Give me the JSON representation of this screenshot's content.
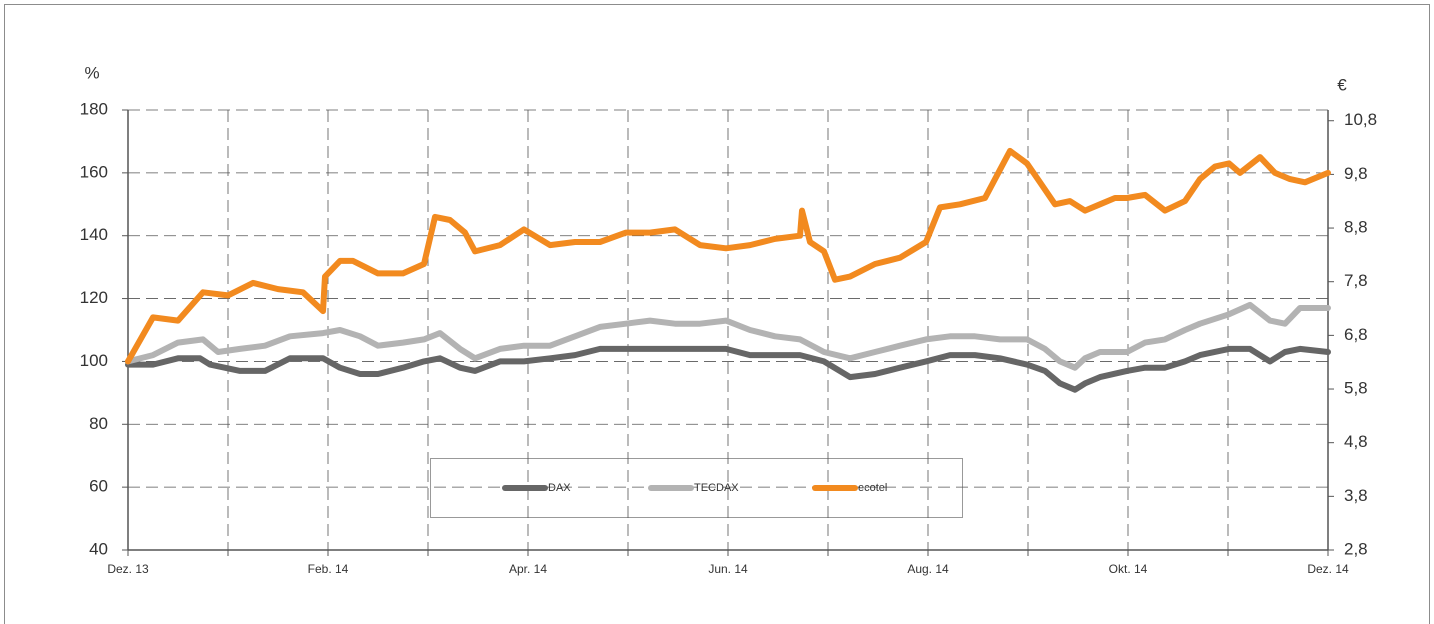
{
  "chart_data": {
    "type": "line",
    "y_label": "%",
    "y2_label": "€",
    "xlim": [
      0,
      12
    ],
    "xticks": [
      {
        "value": 0,
        "label": "Dez. 13"
      },
      {
        "value": 2,
        "label": "Feb. 14"
      },
      {
        "value": 4,
        "label": "Apr. 14"
      },
      {
        "value": 6,
        "label": "Jun. 14"
      },
      {
        "value": 8,
        "label": "Aug. 14"
      },
      {
        "value": 10,
        "label": "Okt. 14"
      },
      {
        "value": 12,
        "label": "Dez. 14"
      }
    ],
    "xgrid_minor": [
      1,
      3,
      5,
      7,
      9,
      11
    ],
    "ylim": [
      40,
      180
    ],
    "yticks": [
      40,
      60,
      80,
      100,
      120,
      140,
      160,
      180
    ],
    "y2lim": [
      2.8,
      11.0
    ],
    "y2ticks": [
      {
        "value": 2.8,
        "label": "2,8"
      },
      {
        "value": 3.8,
        "label": "3,8"
      },
      {
        "value": 4.8,
        "label": "4,8"
      },
      {
        "value": 5.8,
        "label": "5,8"
      },
      {
        "value": 6.8,
        "label": "6,8"
      },
      {
        "value": 7.8,
        "label": "7,8"
      },
      {
        "value": 8.8,
        "label": "8,8"
      },
      {
        "value": 9.8,
        "label": "9,8"
      },
      {
        "value": 10.8,
        "label": "10,8"
      }
    ],
    "grid": true,
    "legend": "lower center",
    "series": [
      {
        "name": "DAX",
        "color": "#666666",
        "x": [
          0,
          0.25,
          0.5,
          0.72,
          0.82,
          1.12,
          1.37,
          1.62,
          1.95,
          2.12,
          2.32,
          2.5,
          2.75,
          2.96,
          3.12,
          3.32,
          3.47,
          3.72,
          3.96,
          4.22,
          4.47,
          4.72,
          4.98,
          5.22,
          5.47,
          5.72,
          5.98,
          6.22,
          6.47,
          6.72,
          6.96,
          7.22,
          7.47,
          7.72,
          7.98,
          8.22,
          8.47,
          8.72,
          8.99,
          9.17,
          9.32,
          9.47,
          9.57,
          9.72,
          9.99,
          10.17,
          10.37,
          10.57,
          10.72,
          11.01,
          11.22,
          11.42,
          11.57,
          11.72,
          12
        ],
        "values": [
          99,
          99,
          101,
          101,
          99,
          97,
          97,
          101,
          101,
          98,
          96,
          96,
          98,
          100,
          101,
          98,
          97,
          100,
          100,
          101,
          102,
          104,
          104,
          104,
          104,
          104,
          104,
          102,
          102,
          102,
          100,
          95,
          96,
          98,
          100,
          102,
          102,
          101,
          99,
          97,
          93,
          91,
          93,
          95,
          97,
          98,
          98,
          100,
          102,
          104,
          104,
          100,
          103,
          104,
          103
        ]
      },
      {
        "name": "TECDAX",
        "color": "#b3b3b3",
        "x": [
          0,
          0.25,
          0.5,
          0.75,
          0.9,
          1.12,
          1.37,
          1.62,
          1.95,
          2.12,
          2.32,
          2.5,
          2.75,
          2.96,
          3.12,
          3.32,
          3.47,
          3.72,
          3.96,
          4.22,
          4.47,
          4.72,
          4.98,
          5.22,
          5.47,
          5.72,
          5.98,
          6.22,
          6.47,
          6.72,
          6.96,
          7.22,
          7.47,
          7.72,
          7.98,
          8.22,
          8.47,
          8.72,
          8.99,
          9.17,
          9.32,
          9.47,
          9.57,
          9.72,
          9.99,
          10.17,
          10.37,
          10.57,
          10.72,
          11.01,
          11.22,
          11.42,
          11.57,
          11.72,
          12
        ],
        "values": [
          100,
          102,
          106,
          107,
          103,
          104,
          105,
          108,
          109,
          110,
          108,
          105,
          106,
          107,
          109,
          104,
          101,
          104,
          105,
          105,
          108,
          111,
          112,
          113,
          112,
          112,
          113,
          110,
          108,
          107,
          103,
          101,
          103,
          105,
          107,
          108,
          108,
          107,
          107,
          104,
          100,
          98,
          101,
          103,
          103,
          106,
          107,
          110,
          112,
          115,
          118,
          113,
          112,
          117,
          117
        ]
      },
      {
        "name": "ecotel",
        "color": "#f28a1f",
        "x": [
          0,
          0.25,
          0.5,
          0.75,
          1,
          1.25,
          1.5,
          1.75,
          1.95,
          1.97,
          2.12,
          2.25,
          2.5,
          2.75,
          2.96,
          3.07,
          3.22,
          3.37,
          3.47,
          3.72,
          3.96,
          4.22,
          4.47,
          4.72,
          4.98,
          5.22,
          5.47,
          5.72,
          5.98,
          6.22,
          6.47,
          6.72,
          6.74,
          6.82,
          6.96,
          7.07,
          7.22,
          7.47,
          7.72,
          7.98,
          8.12,
          8.32,
          8.57,
          8.72,
          8.82,
          8.99,
          9.12,
          9.27,
          9.42,
          9.57,
          9.72,
          9.87,
          9.99,
          10.17,
          10.37,
          10.57,
          10.72,
          10.87,
          11.01,
          11.12,
          11.32,
          11.47,
          11.62,
          11.77,
          12
        ],
        "values": [
          100,
          114,
          113,
          122,
          121,
          125,
          123,
          122,
          116,
          127,
          132,
          132,
          128,
          128,
          131,
          146,
          145,
          141,
          135,
          137,
          142,
          137,
          138,
          138,
          141,
          141,
          142,
          137,
          136,
          137,
          139,
          140,
          148,
          138,
          135,
          126,
          127,
          131,
          133,
          138,
          149,
          150,
          152,
          161,
          167,
          163,
          157,
          150,
          151,
          148,
          150,
          152,
          152,
          153,
          148,
          151,
          158,
          162,
          163,
          160,
          165,
          160,
          158,
          157,
          160
        ]
      }
    ]
  }
}
